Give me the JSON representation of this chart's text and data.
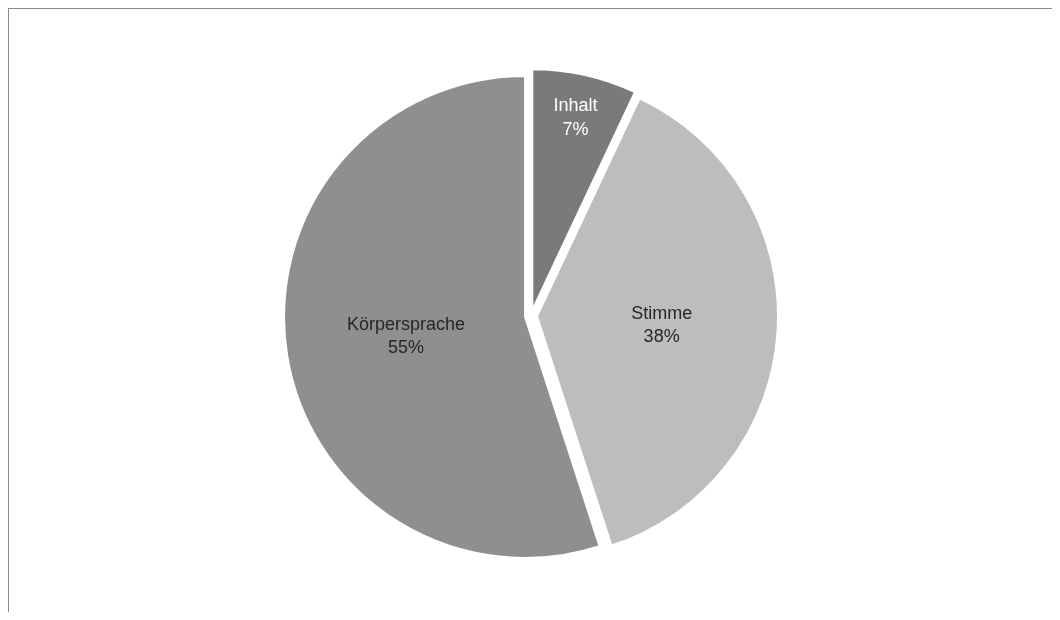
{
  "chart_data": {
    "type": "pie",
    "categories": [
      "Inhalt",
      "Stimme",
      "Körpersprache"
    ],
    "values": [
      7,
      38,
      55
    ],
    "value_labels": [
      "7%",
      "38%",
      "55%"
    ],
    "colors": [
      "#7a7a7a",
      "#bdbdbd",
      "#8f8f8f"
    ],
    "legend": false
  }
}
